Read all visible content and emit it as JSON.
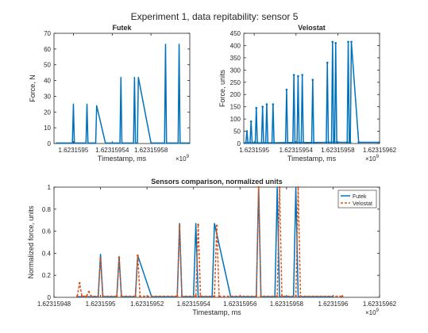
{
  "figure": {
    "suptitle": "Experiment 1, data repitability: sensor 5"
  },
  "chart_data": [
    {
      "type": "line",
      "title": "Futek",
      "xlabel": "Timestamp, ms",
      "ylabel": "Force, N",
      "x_exponent": "×10",
      "x_exponent_power": "9",
      "xlim": [
        1623159480,
        1623159620
      ],
      "ylim": [
        0,
        70
      ],
      "xticks": [
        1623159500,
        1623159540,
        1623159580
      ],
      "xtick_labels": [
        "1.6231595",
        "1.62315954",
        "1.62315958"
      ],
      "yticks": [
        0,
        10,
        20,
        30,
        40,
        50,
        60,
        70
      ],
      "ytick_labels": [
        "0",
        "10",
        "20",
        "30",
        "40",
        "50",
        "60",
        "70"
      ],
      "series": [
        {
          "color": "#0072BD",
          "x": [
            1623159482,
            1623159499,
            1623159500,
            1623159501,
            1623159502,
            1623159513,
            1623159514,
            1623159515,
            1623159523,
            1623159524,
            1623159533,
            1623159548,
            1623159549,
            1623159550,
            1623159551,
            1623159562,
            1623159563,
            1623159564,
            1623159566,
            1623159567,
            1623159580,
            1623159594,
            1623159595,
            1623159596,
            1623159597,
            1623159608,
            1623159609,
            1623159610,
            1623159622,
            1623159623,
            1623159624,
            1623159626
          ],
          "y": [
            0.3,
            0.3,
            25,
            0.3,
            0.3,
            0.3,
            25,
            0.3,
            0.3,
            24,
            0.3,
            0.3,
            42,
            0.3,
            0.3,
            0.3,
            42,
            0.3,
            0.3,
            42,
            0.3,
            0.3,
            63,
            0.3,
            0.3,
            0.3,
            63,
            0.3,
            0.3,
            63,
            0.3,
            0.3
          ]
        }
      ]
    },
    {
      "type": "line",
      "title": "Velostat",
      "xlabel": "Timestamp, ms",
      "ylabel": "Force, units",
      "x_exponent": "×10",
      "x_exponent_power": "9",
      "xlim": [
        1623159490,
        1623159620
      ],
      "ylim": [
        0,
        450
      ],
      "xticks": [
        1623159500,
        1623159540,
        1623159580,
        1623159620
      ],
      "xtick_labels": [
        "1.6231595",
        "1.62315954",
        "1.62315958",
        "1.62315962"
      ],
      "yticks": [
        0,
        50,
        100,
        150,
        200,
        250,
        300,
        350,
        400,
        450
      ],
      "ytick_labels": [
        "0",
        "50",
        "100",
        "150",
        "200",
        "250",
        "300",
        "350",
        "400",
        "450"
      ],
      "series": [
        {
          "color": "#0072BD",
          "markers": true,
          "x": [
            1623159490,
            1623159492,
            1623159493,
            1623159494,
            1623159496,
            1623159497,
            1623159498,
            1623159501,
            1623159502,
            1623159503,
            1623159507,
            1623159508,
            1623159509,
            1623159511,
            1623159512,
            1623159513,
            1623159517,
            1623159518,
            1623159519,
            1623159530,
            1623159531,
            1623159532,
            1623159537,
            1623159538,
            1623159539,
            1623159541,
            1623159542,
            1623159543,
            1623159545,
            1623159546,
            1623159547,
            1623159555,
            1623159556,
            1623159557,
            1623159569,
            1623159570,
            1623159571,
            1623159574,
            1623159575,
            1623159576,
            1623159577,
            1623159578,
            1623159579,
            1623159589,
            1623159590,
            1623159591,
            1623159592,
            1623159593,
            1623159600,
            1623159620
          ],
          "y": [
            2,
            3,
            50,
            3,
            3,
            90,
            3,
            3,
            145,
            3,
            3,
            150,
            3,
            3,
            160,
            3,
            3,
            160,
            3,
            4,
            220,
            4,
            4,
            280,
            4,
            4,
            275,
            4,
            4,
            280,
            4,
            4,
            260,
            4,
            5,
            330,
            5,
            5,
            415,
            5,
            5,
            410,
            5,
            5,
            415,
            5,
            5,
            415,
            5,
            5
          ]
        }
      ]
    },
    {
      "type": "line",
      "title": "Sensors comparison, normalized units",
      "xlabel": "Timestamp, ms",
      "ylabel": "Normalized force, units",
      "x_exponent": "×10",
      "x_exponent_power": "9",
      "xlim": [
        1623159480,
        1623159620
      ],
      "ylim": [
        0,
        1
      ],
      "xticks": [
        1623159480,
        1623159500,
        1623159520,
        1623159540,
        1623159560,
        1623159580,
        1623159600,
        1623159620
      ],
      "xtick_labels": [
        "1.62315948",
        "1.6231595",
        "1.62315952",
        "1.62315954",
        "1.62315956",
        "1.62315958",
        "1.6231596",
        "1.62315962"
      ],
      "yticks": [
        0,
        0.2,
        0.4,
        0.6,
        0.8,
        1
      ],
      "ytick_labels": [
        "0",
        "0.2",
        "0.4",
        "0.6",
        "0.8",
        "1"
      ],
      "legend_position": "top-right",
      "series": [
        {
          "name": "Futek",
          "color": "#0072BD",
          "style": "solid",
          "x": [
            1623159490,
            1623159499,
            1623159500,
            1623159501,
            1623159507,
            1623159508,
            1623159509,
            1623159515,
            1623159516,
            1623159522,
            1623159533,
            1623159534,
            1623159535,
            1623159540,
            1623159541,
            1623159542,
            1623159548,
            1623159549,
            1623159556,
            1623159567,
            1623159568,
            1623159569,
            1623159575,
            1623159576,
            1623159577,
            1623159583,
            1623159584,
            1623159585,
            1623159600
          ],
          "y": [
            0.005,
            0.005,
            0.39,
            0.005,
            0.005,
            0.37,
            0.005,
            0.005,
            0.38,
            0.005,
            0.005,
            0.67,
            0.005,
            0.005,
            0.67,
            0.005,
            0.005,
            0.67,
            0.005,
            0.005,
            1.0,
            0.005,
            0.005,
            1.0,
            0.005,
            0.005,
            1.0,
            0.005,
            0.005
          ]
        },
        {
          "name": "Velostat",
          "color": "#D95319",
          "style": "dashed",
          "markers": true,
          "x": [
            1623159490,
            1623159491,
            1623159492,
            1623159494,
            1623159495,
            1623159496,
            1623159499,
            1623159500,
            1623159501,
            1623159507,
            1623159508,
            1623159509,
            1623159515,
            1623159516,
            1623159517,
            1623159533,
            1623159534,
            1623159535,
            1623159541,
            1623159542,
            1623159543,
            1623159549,
            1623159550,
            1623159551,
            1623159567,
            1623159568,
            1623159569,
            1623159576,
            1623159577,
            1623159578,
            1623159584,
            1623159585,
            1623159586,
            1623159604
          ],
          "y": [
            0.01,
            0.13,
            0.01,
            0.01,
            0.05,
            0.01,
            0.01,
            0.35,
            0.01,
            0.01,
            0.36,
            0.01,
            0.01,
            0.38,
            0.01,
            0.01,
            0.65,
            0.01,
            0.01,
            0.66,
            0.01,
            0.01,
            0.65,
            0.01,
            0.01,
            1.0,
            0.01,
            0.01,
            1.0,
            0.01,
            0.01,
            1.0,
            0.01,
            0.01
          ]
        }
      ]
    }
  ]
}
